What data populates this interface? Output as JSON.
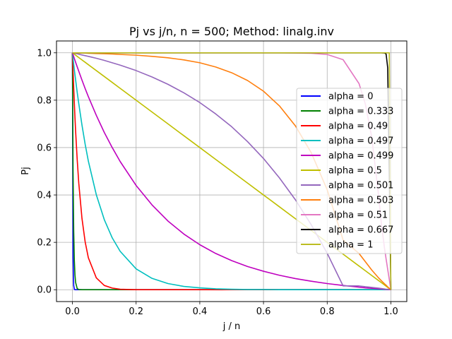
{
  "chart_data": {
    "type": "line",
    "title": "Pj vs j/n, n = 500; Method: linalg.inv",
    "xlabel": "j / n",
    "ylabel": "Pj",
    "xlim": [
      -0.05,
      1.05
    ],
    "ylim": [
      -0.05,
      1.05
    ],
    "xticks": [
      "0.0",
      "0.2",
      "0.4",
      "0.6",
      "0.8",
      "1.0"
    ],
    "yticks": [
      "0.0",
      "0.2",
      "0.4",
      "0.6",
      "0.8",
      "1.0"
    ],
    "grid": true,
    "legend_position": "right",
    "x": [
      0,
      0.002,
      0.004,
      0.006,
      0.008,
      0.01,
      0.015,
      0.02,
      0.03,
      0.04,
      0.05,
      0.075,
      0.1,
      0.125,
      0.15,
      0.2,
      0.25,
      0.3,
      0.35,
      0.4,
      0.45,
      0.5,
      0.55,
      0.6,
      0.65,
      0.7,
      0.75,
      0.8,
      0.85,
      0.9,
      0.92,
      0.94,
      0.96,
      0.97,
      0.98,
      0.985,
      0.99,
      0.995,
      1.0
    ],
    "series": [
      {
        "name": "alpha = 0",
        "color": "#0000ff",
        "values": [
          1,
          0.135,
          0.018,
          0.002,
          0,
          0,
          0,
          0,
          0,
          0,
          0,
          0,
          0,
          0,
          0,
          0,
          0,
          0,
          0,
          0,
          0,
          0,
          0,
          0,
          0,
          0,
          0,
          0,
          0,
          0,
          0,
          0,
          0,
          0,
          0,
          0,
          0,
          0,
          0
        ]
      },
      {
        "name": "alpha = 0.333",
        "color": "#008000",
        "values": [
          1,
          0.5,
          0.25,
          0.125,
          0.063,
          0.031,
          0.005,
          0.001,
          0,
          0,
          0,
          0,
          0,
          0,
          0,
          0,
          0,
          0,
          0,
          0,
          0,
          0,
          0,
          0,
          0,
          0,
          0,
          0,
          0,
          0,
          0,
          0,
          0,
          0,
          0,
          0,
          0,
          0,
          0
        ]
      },
      {
        "name": "alpha = 0.49",
        "color": "#ff0000",
        "values": [
          1,
          0.923,
          0.852,
          0.787,
          0.726,
          0.67,
          0.549,
          0.449,
          0.301,
          0.202,
          0.135,
          0.05,
          0.018,
          0.007,
          0.002,
          0,
          0,
          0,
          0,
          0,
          0,
          0,
          0,
          0,
          0,
          0,
          0,
          0,
          0,
          0,
          0,
          0,
          0,
          0,
          0,
          0,
          0,
          0,
          0
        ]
      },
      {
        "name": "alpha = 0.497",
        "color": "#00bfbf",
        "values": [
          1,
          0.976,
          0.952,
          0.929,
          0.907,
          0.886,
          0.833,
          0.785,
          0.695,
          0.614,
          0.543,
          0.401,
          0.296,
          0.219,
          0.162,
          0.088,
          0.048,
          0.026,
          0.014,
          0.008,
          0.004,
          0.002,
          0.001,
          0.001,
          0,
          0,
          0,
          0,
          0,
          0,
          0,
          0,
          0,
          0,
          0,
          0,
          0,
          0,
          0
        ]
      },
      {
        "name": "alpha = 0.499",
        "color": "#bf00bf",
        "values": [
          1,
          0.992,
          0.984,
          0.976,
          0.968,
          0.96,
          0.941,
          0.922,
          0.885,
          0.849,
          0.815,
          0.736,
          0.664,
          0.6,
          0.541,
          0.44,
          0.358,
          0.29,
          0.235,
          0.19,
          0.153,
          0.123,
          0.098,
          0.078,
          0.061,
          0.047,
          0.036,
          0.026,
          0.018,
          0.011,
          0.008,
          0.006,
          0.004,
          0.003,
          0.002,
          0.001,
          0.001,
          0,
          0
        ]
      },
      {
        "name": "alpha = 0.5",
        "color": "#bfbf00",
        "values": [
          1,
          0.998,
          0.996,
          0.994,
          0.992,
          0.99,
          0.985,
          0.98,
          0.97,
          0.96,
          0.95,
          0.925,
          0.9,
          0.875,
          0.85,
          0.8,
          0.75,
          0.7,
          0.65,
          0.6,
          0.55,
          0.5,
          0.45,
          0.4,
          0.35,
          0.3,
          0.25,
          0.2,
          0.15,
          0.1,
          0.08,
          0.06,
          0.04,
          0.03,
          0.02,
          0.015,
          0.01,
          0.005,
          0
        ]
      },
      {
        "name": "alpha = 0.501",
        "color": "#9467bd",
        "values": [
          1,
          0.999,
          0.999,
          0.998,
          0.998,
          0.997,
          0.996,
          0.994,
          0.991,
          0.988,
          0.985,
          0.977,
          0.968,
          0.958,
          0.948,
          0.925,
          0.898,
          0.867,
          0.831,
          0.79,
          0.742,
          0.688,
          0.625,
          0.554,
          0.472,
          0.38,
          0.274,
          0.154,
          0.016,
          0.016,
          0.013,
          0.01,
          0.007,
          0.005,
          0.003,
          0.002,
          0.002,
          0.001,
          0
        ]
      },
      {
        "name": "alpha = 0.503",
        "color": "#ff7f0e",
        "values": [
          1,
          1,
          1,
          1,
          1,
          1,
          1,
          0.999,
          0.999,
          0.999,
          0.998,
          0.997,
          0.996,
          0.995,
          0.993,
          0.99,
          0.985,
          0.979,
          0.97,
          0.958,
          0.94,
          0.916,
          0.883,
          0.838,
          0.776,
          0.692,
          0.578,
          0.422,
          0.21,
          0.153,
          0.118,
          0.083,
          0.052,
          0.038,
          0.025,
          0.019,
          0.012,
          0.006,
          0
        ]
      },
      {
        "name": "alpha = 0.51",
        "color": "#e377c2",
        "values": [
          1,
          1,
          1,
          1,
          1,
          1,
          1,
          1,
          1,
          1,
          1,
          1,
          1,
          1,
          1,
          1,
          1,
          1,
          1,
          1,
          1,
          1,
          1,
          1,
          1,
          0.999,
          0.998,
          0.993,
          0.971,
          0.87,
          0.783,
          0.643,
          0.414,
          0.281,
          0.175,
          0.13,
          0.086,
          0.043,
          0
        ]
      },
      {
        "name": "alpha = 0.667",
        "color": "#000000",
        "values": [
          1,
          1,
          1,
          1,
          1,
          1,
          1,
          1,
          1,
          1,
          1,
          1,
          1,
          1,
          1,
          1,
          1,
          1,
          1,
          1,
          1,
          1,
          1,
          1,
          1,
          1,
          1,
          1,
          1,
          1,
          1,
          1,
          1,
          1,
          0.999,
          0.995,
          0.937,
          0.5,
          0
        ]
      },
      {
        "name": "alpha = 1",
        "color": "#bcbd22",
        "values": [
          1,
          1,
          1,
          1,
          1,
          1,
          1,
          1,
          1,
          1,
          1,
          1,
          1,
          1,
          1,
          1,
          1,
          1,
          1,
          1,
          1,
          1,
          1,
          1,
          1,
          1,
          1,
          1,
          1,
          1,
          1,
          1,
          1,
          1,
          1,
          1,
          1,
          1,
          0
        ]
      }
    ]
  }
}
